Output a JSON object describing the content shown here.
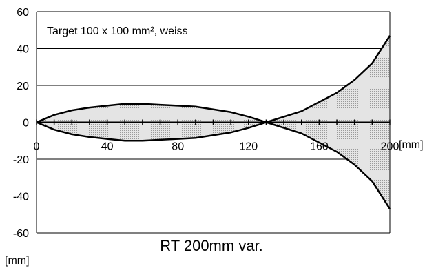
{
  "chart_data": {
    "type": "area",
    "title": "RT 200mm var.",
    "annotation": "Target 100 x 100 mm², weiss",
    "x_unit": "[mm]",
    "y_unit": "[mm]",
    "xlim": [
      0,
      200
    ],
    "ylim": [
      -60,
      60
    ],
    "x_ticks": [
      0,
      40,
      80,
      120,
      160,
      200
    ],
    "y_ticks": [
      60,
      40,
      20,
      0,
      -20,
      -40,
      -60
    ],
    "grid": "horizontal",
    "legend": "none",
    "series": [
      {
        "x": [
          0,
          10,
          20,
          30,
          40,
          50,
          60,
          70,
          80,
          90,
          100,
          110,
          120,
          130,
          140,
          150,
          160,
          170,
          180,
          190,
          200
        ],
        "values": [
          0,
          4,
          6.5,
          8,
          9,
          10,
          10,
          9.5,
          9,
          8.5,
          7,
          5.5,
          3,
          0,
          3,
          6,
          11,
          16,
          23,
          32,
          47
        ]
      },
      {
        "x": [
          0,
          10,
          20,
          30,
          40,
          50,
          60,
          70,
          80,
          90,
          100,
          110,
          120,
          130,
          140,
          150,
          160,
          170,
          180,
          190,
          200
        ],
        "values": [
          0,
          -4,
          -6.5,
          -8,
          -9,
          -10,
          -10,
          -9.5,
          -9,
          -8.5,
          -7,
          -5.5,
          -3,
          0,
          -3,
          -6,
          -11,
          -16,
          -23,
          -32,
          -47
        ]
      }
    ],
    "colors": {
      "line": "#000000",
      "fill": "#d4d4d4"
    }
  }
}
